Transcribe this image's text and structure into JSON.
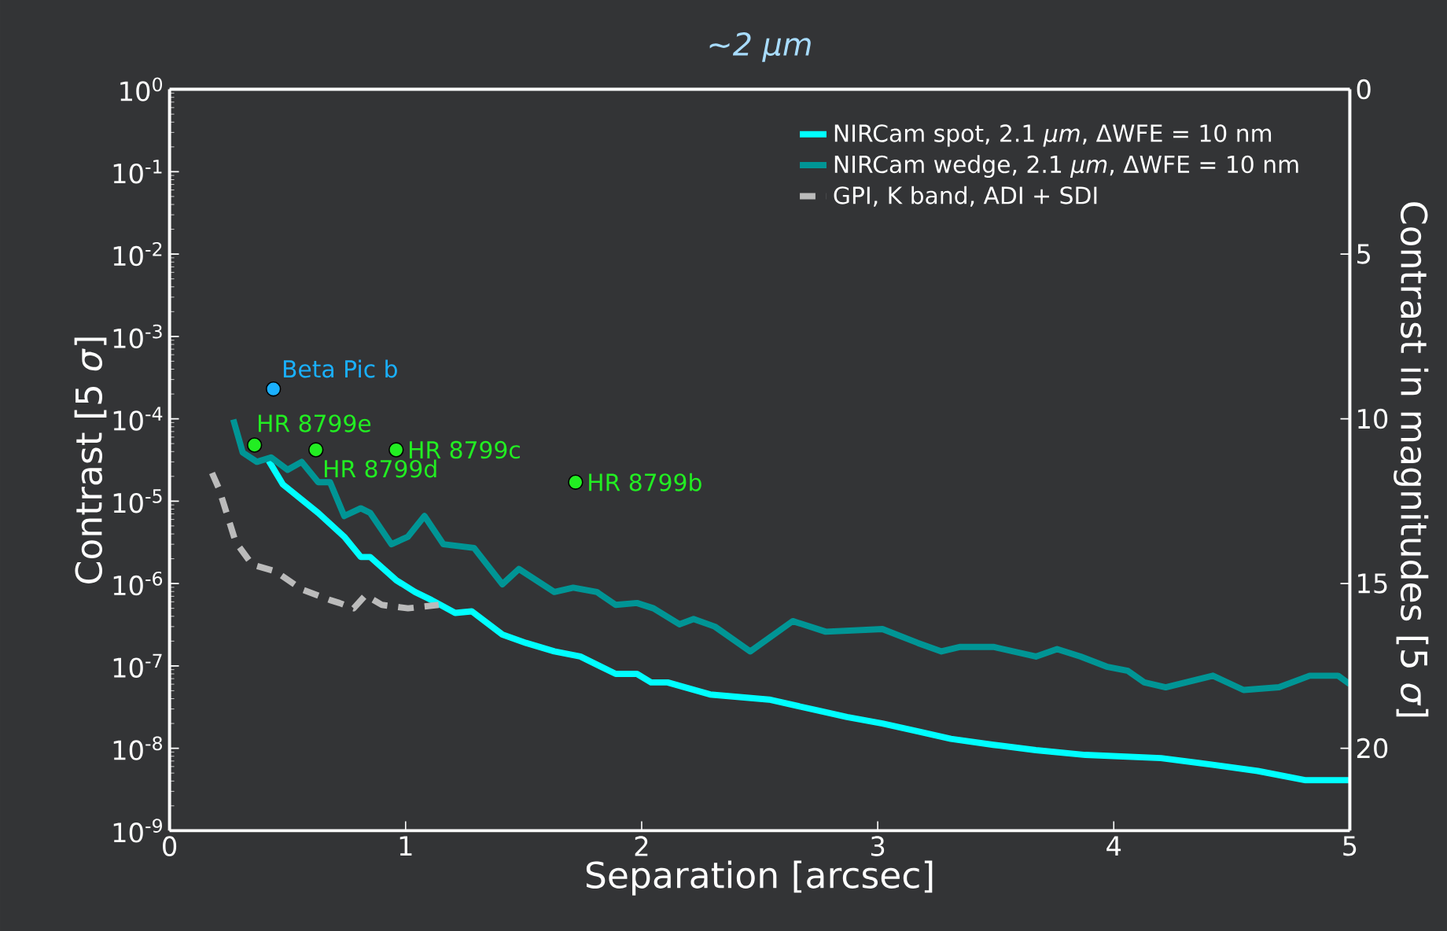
{
  "chart_data": {
    "type": "line",
    "title": "~2 μm",
    "xlabel": "Separation [arcsec]",
    "ylabel": "Contrast  [5 *σ*]",
    "y2label": "Contrast in magnitudes  [5 *σ*]",
    "log": "y",
    "legend": "top right",
    "xlim": [
      0,
      5
    ],
    "xticks": [
      0,
      1,
      2,
      3,
      4,
      5
    ],
    "ylim": [
      1e-09,
      1
    ],
    "yticks": [
      {
        "value": 1e-09,
        "label": "10$^{-9}$"
      },
      {
        "value": 1e-08,
        "label": "10$^{-8}$"
      },
      {
        "value": 1e-07,
        "label": "10$^{-7}$"
      },
      {
        "value": 1e-06,
        "label": "10$^{-6}$"
      },
      {
        "value": 1e-05,
        "label": "10$^{-5}$"
      },
      {
        "value": 0.0001,
        "label": "10$^{-4}$"
      },
      {
        "value": 0.001,
        "label": "10$^{-3}$"
      },
      {
        "value": 0.01,
        "label": "10$^{-2}$"
      },
      {
        "value": 0.1,
        "label": "10$^{-1}$"
      },
      {
        "value": 1,
        "label": "10$^{0}$"
      }
    ],
    "y2lim": [
      22.5,
      0
    ],
    "y2ticks": [
      0,
      5,
      10,
      15,
      20
    ],
    "series": [
      {
        "name": "NIRCam spot,    2.1 *μm*, ΔWFE = 10 nm",
        "color": "#00ffff",
        "line_style": "solid",
        "x": [
          0.42,
          0.48,
          0.63,
          0.74,
          0.81,
          0.85,
          0.96,
          1.04,
          1.11,
          1.21,
          1.28,
          1.41,
          1.51,
          1.63,
          1.74,
          1.89,
          1.98,
          2.04,
          2.11,
          2.29,
          2.54,
          2.74,
          2.87,
          3.02,
          3.17,
          3.31,
          3.49,
          3.67,
          3.88,
          4.2,
          4.42,
          4.61,
          4.81,
          5.0
        ],
        "values": [
          3.1e-05,
          1.6e-05,
          7.2e-06,
          3.7e-06,
          2.1e-06,
          2.1e-06,
          1.1e-06,
          7.9e-07,
          6.3e-07,
          4.4e-07,
          4.6e-07,
          2.4e-07,
          1.9e-07,
          1.5e-07,
          1.3e-07,
          8e-08,
          8e-08,
          6.3e-08,
          6.3e-08,
          4.5e-08,
          3.9e-08,
          2.9e-08,
          2.4e-08,
          2e-08,
          1.6e-08,
          1.3e-08,
          1.1e-08,
          9.5e-09,
          8.3e-09,
          7.6e-09,
          6.3e-09,
          5.3e-09,
          4.1e-09,
          4.1e-09
        ]
      },
      {
        "name": "NIRCam wedge, 2.1 *μm*, ΔWFE = 10 nm",
        "color": "#009595",
        "line_style": "solid",
        "x": [
          0.27,
          0.31,
          0.37,
          0.43,
          0.5,
          0.56,
          0.63,
          0.68,
          0.74,
          0.81,
          0.85,
          0.94,
          1.01,
          1.08,
          1.16,
          1.29,
          1.41,
          1.48,
          1.63,
          1.71,
          1.81,
          1.89,
          1.98,
          2.05,
          2.16,
          2.22,
          2.31,
          2.46,
          2.64,
          2.78,
          3.02,
          3.17,
          3.27,
          3.35,
          3.49,
          3.67,
          3.76,
          3.86,
          3.97,
          4.06,
          4.13,
          4.22,
          4.42,
          4.55,
          4.7,
          4.83,
          4.95,
          5.0
        ],
        "values": [
          9.8e-05,
          3.9e-05,
          3e-05,
          3.4e-05,
          2.4e-05,
          3e-05,
          1.7e-05,
          1.7e-05,
          6.6e-06,
          8.2e-06,
          7.2e-06,
          3e-06,
          3.7e-06,
          6.6e-06,
          3e-06,
          2.7e-06,
          9.8e-07,
          1.5e-06,
          7.9e-07,
          8.9e-07,
          7.9e-07,
          5.5e-07,
          5.8e-07,
          5e-07,
          3.2e-07,
          3.7e-07,
          3e-07,
          1.5e-07,
          3.5e-07,
          2.6e-07,
          2.8e-07,
          1.9e-07,
          1.5e-07,
          1.7e-07,
          1.7e-07,
          1.3e-07,
          1.6e-07,
          1.3e-07,
          9.8e-08,
          8.7e-08,
          6.3e-08,
          5.5e-08,
          7.6e-08,
          5.1e-08,
          5.5e-08,
          7.6e-08,
          7.6e-08,
          6e-08
        ]
      },
      {
        "name": "GPI, K band, ADI + SDI",
        "color": "#bbbbbb",
        "line_style": "dashed",
        "x": [
          0.18,
          0.21,
          0.28,
          0.35,
          0.45,
          0.56,
          0.68,
          0.72,
          0.78,
          0.83,
          0.9,
          1.01,
          1.14
        ],
        "values": [
          2.2e-05,
          1.4e-05,
          3.2e-06,
          1.7e-06,
          1.4e-06,
          8.5e-07,
          6.3e-07,
          5.8e-07,
          5e-07,
          7.2e-07,
          5.5e-07,
          5e-07,
          5.5e-07
        ]
      },
      {
        "type": "scatter",
        "marker": "circle",
        "x": [
          0.44,
          0.36,
          0.96,
          0.62,
          1.72
        ],
        "values": [
          0.00023,
          4.8e-05,
          4.2e-05,
          4.2e-05,
          1.7e-05
        ],
        "colors": [
          "#1ab0ff",
          "#22ee22",
          "#22ee22",
          "#22ee22",
          "#22ee22"
        ]
      }
    ],
    "annotations": [
      {
        "text": "Beta Pic b",
        "x": 0.44,
        "y": 0.00023
      },
      {
        "text": "HR 8799e",
        "x": 0.36,
        "y": 4.8e-05
      },
      {
        "text": "HR 8799c",
        "x": 0.96,
        "y": 4.2e-05
      },
      {
        "text": "HR 8799d",
        "x": 0.62,
        "y": 4.2e-05
      },
      {
        "text": "HR 8799b",
        "x": 1.72,
        "y": 1.7e-05
      }
    ]
  }
}
